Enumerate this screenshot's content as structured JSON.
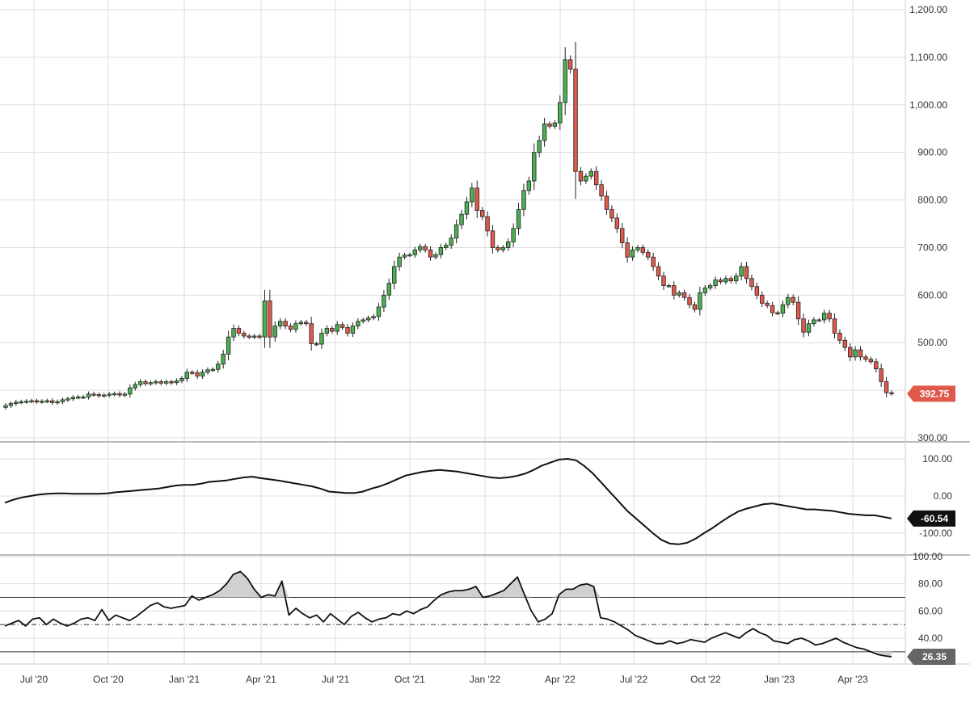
{
  "chart_data": [
    {
      "type": "candlestick",
      "panel": "price",
      "title": "",
      "xlabel": "",
      "ylabel": "",
      "ylim": [
        300,
        1200
      ],
      "yticks": [
        "1,200.00",
        "1,100.00",
        "1,000.00",
        "900.00",
        "800.00",
        "700.00",
        "600.00",
        "500.00",
        "400.00",
        "300.00"
      ],
      "grid": true,
      "up_color": "#4caf50",
      "down_color": "#e05a4b",
      "last_value_label": "392.75",
      "last_value": 392.75,
      "weekly_closes": [
        368,
        372,
        375,
        376,
        377,
        378,
        376,
        377,
        378,
        374,
        376,
        380,
        382,
        385,
        386,
        386,
        392,
        391,
        389,
        390,
        392,
        393,
        390,
        392,
        405,
        412,
        418,
        414,
        416,
        418,
        415,
        418,
        416,
        420,
        425,
        438,
        437,
        430,
        438,
        443,
        444,
        455,
        476,
        512,
        530,
        520,
        514,
        512,
        514,
        512,
        588,
        512,
        535,
        545,
        535,
        528,
        540,
        543,
        540,
        498,
        497,
        520,
        530,
        524,
        538,
        532,
        520,
        535,
        545,
        548,
        552,
        555,
        575,
        600,
        625,
        660,
        680,
        684,
        685,
        695,
        702,
        695,
        680,
        685,
        700,
        705,
        720,
        748,
        770,
        796,
        825,
        778,
        765,
        735,
        700,
        695,
        700,
        712,
        740,
        780,
        820,
        840,
        900,
        925,
        960,
        955,
        962,
        1005,
        1095,
        1075,
        860,
        840,
        850,
        860,
        832,
        808,
        780,
        762,
        740,
        710,
        680,
        695,
        700,
        690,
        680,
        660,
        640,
        620,
        620,
        600,
        605,
        595,
        580,
        570,
        605,
        615,
        620,
        632,
        628,
        635,
        630,
        640,
        660,
        635,
        618,
        600,
        583,
        578,
        563,
        562,
        580,
        595,
        585,
        550,
        522,
        540,
        548,
        548,
        562,
        550,
        520,
        505,
        490,
        470,
        485,
        470,
        465,
        460,
        445,
        418,
        395,
        393
      ]
    },
    {
      "type": "line",
      "panel": "oscillator",
      "title": "",
      "xlabel": "",
      "ylabel": "",
      "ylim": [
        -150,
        130
      ],
      "yticks": [
        "100.00",
        "0.00",
        "-100.00"
      ],
      "last_value_label": "-60.54",
      "last_value": -60.54,
      "values": [
        -18,
        -10,
        -4,
        0,
        4,
        6,
        7,
        7,
        6,
        6,
        6,
        6,
        7,
        10,
        12,
        14,
        16,
        18,
        20,
        24,
        28,
        30,
        30,
        33,
        38,
        40,
        42,
        46,
        50,
        52,
        48,
        45,
        42,
        38,
        34,
        30,
        26,
        20,
        12,
        10,
        8,
        8,
        12,
        20,
        26,
        35,
        45,
        55,
        60,
        65,
        68,
        70,
        68,
        66,
        62,
        58,
        54,
        50,
        48,
        50,
        54,
        60,
        70,
        82,
        90,
        98,
        100,
        96,
        80,
        60,
        35,
        10,
        -15,
        -40,
        -60,
        -80,
        -100,
        -118,
        -128,
        -130,
        -126,
        -115,
        -100,
        -86,
        -70,
        -55,
        -42,
        -34,
        -28,
        -22,
        -20,
        -24,
        -28,
        -32,
        -36,
        -36,
        -38,
        -40,
        -44,
        -48,
        -50,
        -52,
        -52,
        -56,
        -60.54
      ]
    },
    {
      "type": "area",
      "panel": "rsi",
      "title": "",
      "xlabel": "",
      "ylabel": "",
      "ylim": [
        20,
        100
      ],
      "yticks": [
        "100.00",
        "80.00",
        "60.00",
        "40.00"
      ],
      "upper_band": 70,
      "mid_band": 50,
      "lower_band": 30,
      "last_value_label": "26.35",
      "last_value": 26.35,
      "values": [
        49,
        51,
        53,
        49,
        54,
        55,
        50,
        54,
        51,
        49,
        51,
        54,
        55,
        53,
        61,
        53,
        57,
        55,
        53,
        56,
        60,
        64,
        66,
        63,
        62,
        63,
        64,
        71,
        68,
        70,
        72,
        75,
        80,
        87,
        89,
        84,
        76,
        70,
        72,
        71,
        82,
        57,
        62,
        58,
        55,
        57,
        52,
        58,
        54,
        50,
        56,
        59,
        55,
        52,
        54,
        55,
        58,
        57,
        60,
        58,
        61,
        63,
        68,
        72,
        74,
        75,
        75,
        76,
        78,
        70,
        71,
        73,
        75,
        80,
        85,
        72,
        60,
        52,
        54,
        58,
        72,
        76,
        76,
        79,
        80,
        78,
        55,
        54,
        52,
        49,
        46,
        42,
        40,
        38,
        36,
        36,
        38,
        36,
        37,
        39,
        38,
        37,
        40,
        42,
        44,
        42,
        40,
        44,
        47,
        44,
        42,
        38,
        37,
        36,
        39,
        40,
        38,
        35,
        36,
        38,
        40,
        37,
        35,
        33,
        32,
        30,
        28,
        27,
        26.35
      ]
    }
  ],
  "x_axis": {
    "labels": [
      "Jul '20",
      "Oct '20",
      "Jan '21",
      "Apr '21",
      "Jul '21",
      "Oct '21",
      "Jan '22",
      "Apr '22",
      "Jul '22",
      "Oct '22",
      "Jan '23",
      "Apr '23"
    ]
  },
  "colors": {
    "price_tag": "#e05a4b",
    "osc_tag": "#111111",
    "rsi_tag": "#666666",
    "grid": "#dddddd",
    "line": "#111111",
    "rsi_fill": "#d0d0d0"
  }
}
